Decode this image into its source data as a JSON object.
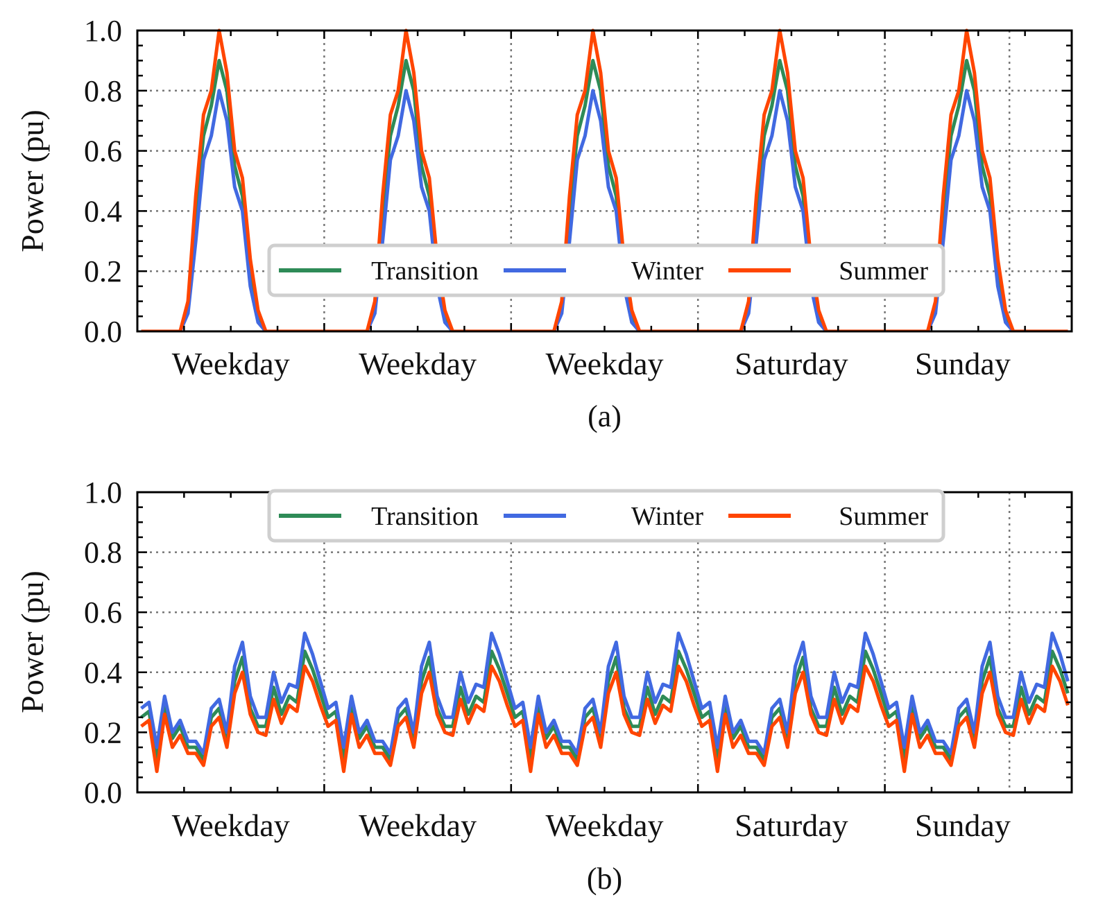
{
  "chart_data": [
    {
      "type": "line",
      "panel_label": "(a)",
      "ylabel": "Power (pu)",
      "ylim": [
        0,
        1.0
      ],
      "yticks": [
        "0.0",
        "0.2",
        "0.4",
        "0.6",
        "0.8",
        "1.0"
      ],
      "categories": [
        "Weekday",
        "Weekday",
        "Weekday",
        "Saturday",
        "Sunday"
      ],
      "grid": true,
      "legend_position": "lower-center",
      "series": [
        {
          "name": "Transition",
          "color": "#2e8b57",
          "day_profile": [
            0,
            0,
            0,
            0,
            0,
            0,
            0.08,
            0.4,
            0.65,
            0.75,
            0.9,
            0.8,
            0.55,
            0.45,
            0.2,
            0.05,
            0,
            0,
            0,
            0,
            0,
            0,
            0,
            0
          ]
        },
        {
          "name": "Winter",
          "color": "#4169e1",
          "day_profile": [
            0,
            0,
            0,
            0,
            0,
            0,
            0.06,
            0.3,
            0.57,
            0.65,
            0.8,
            0.7,
            0.48,
            0.4,
            0.15,
            0.03,
            0,
            0,
            0,
            0,
            0,
            0,
            0,
            0
          ]
        },
        {
          "name": "Summer",
          "color": "#ff4500",
          "day_profile": [
            0,
            0,
            0,
            0,
            0,
            0,
            0.1,
            0.45,
            0.72,
            0.8,
            1.0,
            0.86,
            0.6,
            0.51,
            0.24,
            0.07,
            0,
            0,
            0,
            0,
            0,
            0,
            0,
            0
          ]
        }
      ]
    },
    {
      "type": "line",
      "panel_label": "(b)",
      "ylabel": "Power (pu)",
      "ylim": [
        0,
        1.0
      ],
      "yticks": [
        "0.0",
        "0.2",
        "0.4",
        "0.6",
        "0.8",
        "1.0"
      ],
      "categories": [
        "Weekday",
        "Weekday",
        "Weekday",
        "Saturday",
        "Sunday"
      ],
      "grid": true,
      "legend_position": "upper-center",
      "series": [
        {
          "name": "Transition",
          "color": "#2e8b57",
          "day_profile": [
            0.25,
            0.27,
            0.11,
            0.29,
            0.18,
            0.22,
            0.15,
            0.15,
            0.11,
            0.25,
            0.28,
            0.18,
            0.37,
            0.45,
            0.28,
            0.22,
            0.22,
            0.35,
            0.26,
            0.32,
            0.3,
            0.47,
            0.41,
            0.33
          ]
        },
        {
          "name": "Winter",
          "color": "#4169e1",
          "day_profile": [
            0.28,
            0.3,
            0.15,
            0.32,
            0.2,
            0.24,
            0.17,
            0.17,
            0.13,
            0.28,
            0.31,
            0.2,
            0.42,
            0.5,
            0.32,
            0.25,
            0.25,
            0.4,
            0.3,
            0.36,
            0.35,
            0.53,
            0.46,
            0.37
          ]
        },
        {
          "name": "Summer",
          "color": "#ff4500",
          "day_profile": [
            0.22,
            0.24,
            0.07,
            0.26,
            0.15,
            0.19,
            0.13,
            0.13,
            0.09,
            0.22,
            0.25,
            0.15,
            0.33,
            0.4,
            0.26,
            0.2,
            0.19,
            0.31,
            0.23,
            0.29,
            0.27,
            0.42,
            0.37,
            0.29
          ]
        }
      ]
    }
  ]
}
